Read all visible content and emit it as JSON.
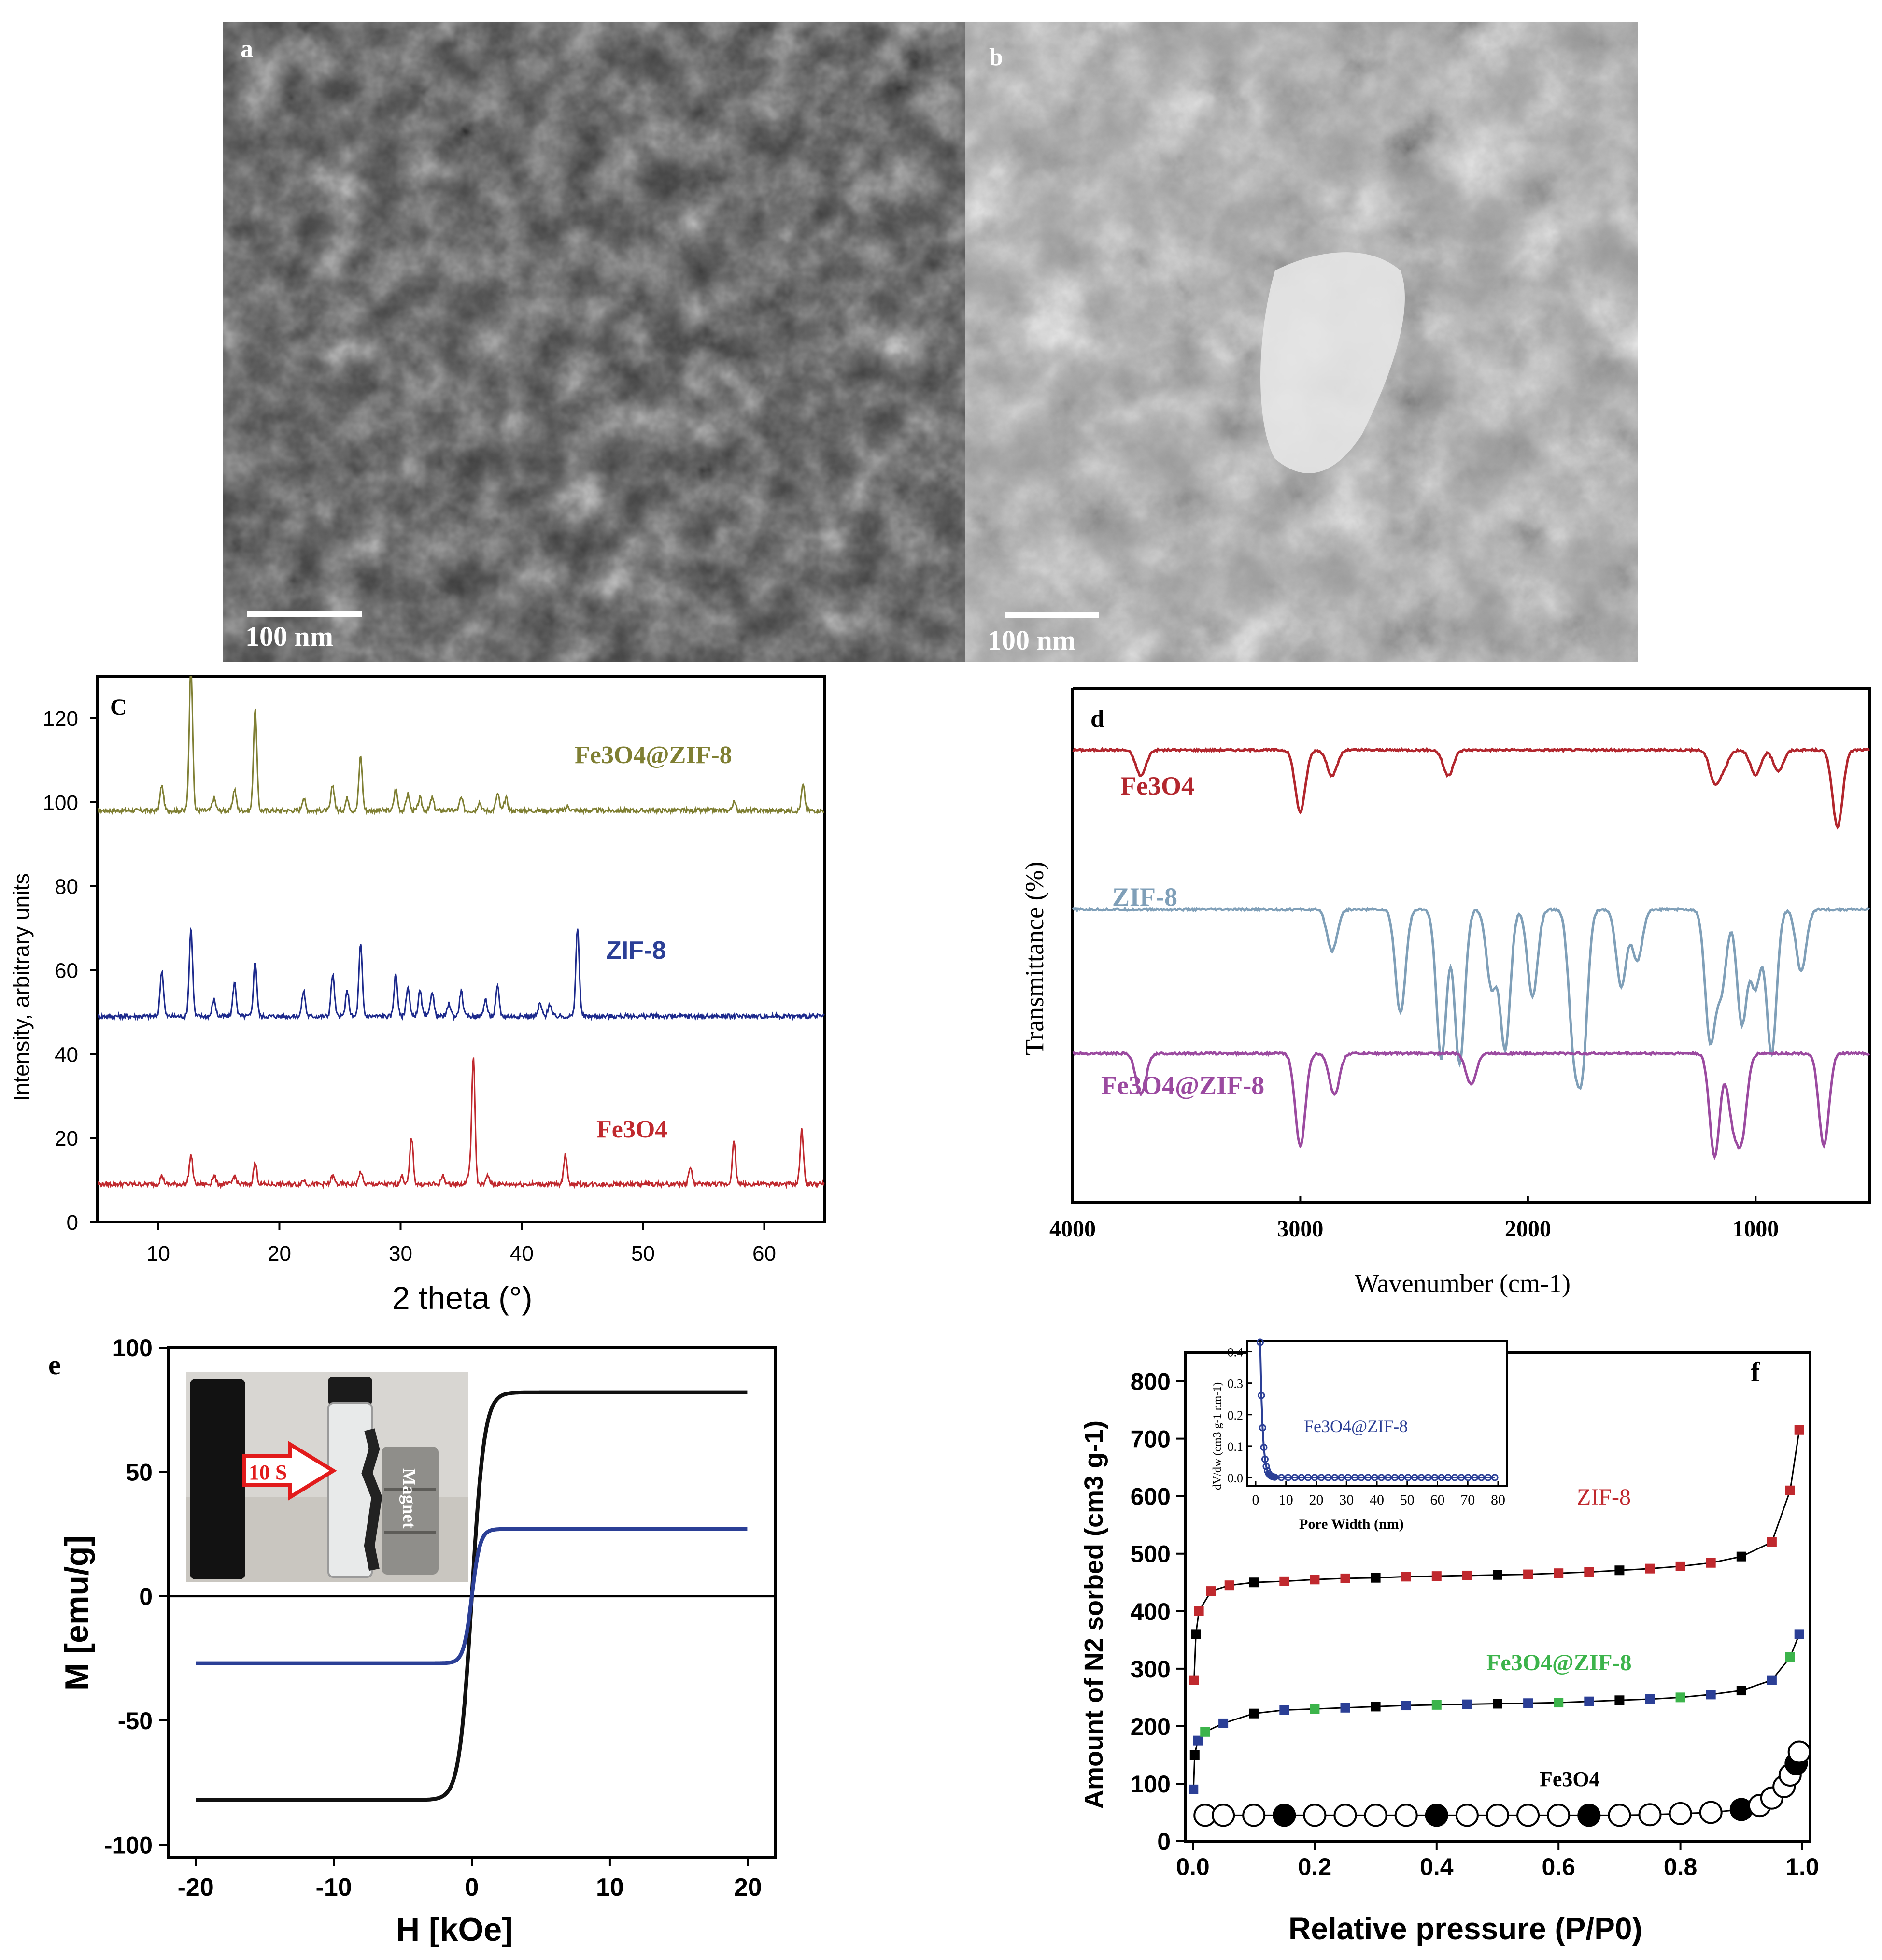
{
  "colors": {
    "red": "#c0292e",
    "blue": "#1d2a8c",
    "olive": "#7f7f33",
    "ftir_red": "#b2262d",
    "ftir_blue": "#7f9fb8",
    "ftir_purple": "#9b4aa0",
    "green": "#3cb44b",
    "navy": "#2b3f96",
    "black": "#111111"
  },
  "panel_a": {
    "label": "a",
    "scale": "100 nm"
  },
  "panel_b": {
    "label": "b",
    "scale": "100 nm"
  },
  "chart_data": [
    {
      "panel": "c",
      "type": "line",
      "xlabel": "2 theta (°)",
      "ylabel": "Intensity, arbitrary units",
      "xlim": [
        5,
        65
      ],
      "ylim": [
        0,
        130
      ],
      "xticks": [
        "10",
        "20",
        "30",
        "40",
        "50",
        "60"
      ],
      "yticks": [
        "0",
        "20",
        "40",
        "60",
        "80",
        "100",
        "120"
      ],
      "series": [
        {
          "name": "Fe3O4@ZIF-8",
          "color": "#7f7f33",
          "baseline": 98,
          "peaks": [
            [
              10.3,
              6
            ],
            [
              12.7,
              35
            ],
            [
              14.6,
              3
            ],
            [
              16.3,
              5
            ],
            [
              18.0,
              24
            ],
            [
              22.0,
              3
            ],
            [
              24.4,
              6
            ],
            [
              25.6,
              3
            ],
            [
              26.7,
              13
            ],
            [
              29.6,
              5
            ],
            [
              30.6,
              4
            ],
            [
              31.6,
              3
            ],
            [
              32.6,
              3
            ],
            [
              35.0,
              3
            ],
            [
              36.5,
              2
            ],
            [
              38.0,
              4
            ],
            [
              38.7,
              3
            ],
            [
              43.8,
              1
            ],
            [
              57.5,
              2
            ],
            [
              63.2,
              6
            ]
          ]
        },
        {
          "name": "ZIF-8",
          "color": "#1d2a8c",
          "baseline": 49,
          "peaks": [
            [
              10.3,
              11
            ],
            [
              12.7,
              21
            ],
            [
              14.6,
              4
            ],
            [
              16.3,
              8
            ],
            [
              18.0,
              13
            ],
            [
              22.0,
              6
            ],
            [
              24.4,
              10
            ],
            [
              25.6,
              6
            ],
            [
              26.7,
              17
            ],
            [
              29.6,
              10
            ],
            [
              30.6,
              7
            ],
            [
              31.6,
              6
            ],
            [
              32.6,
              6
            ],
            [
              34.0,
              3
            ],
            [
              35.0,
              6
            ],
            [
              37.0,
              4
            ],
            [
              38.0,
              7
            ],
            [
              41.5,
              3
            ],
            [
              42.3,
              3
            ],
            [
              44.6,
              21
            ]
          ]
        },
        {
          "name": "Fe3O4",
          "color": "#c0292e",
          "baseline": 9,
          "peaks": [
            [
              10.3,
              2
            ],
            [
              12.7,
              7
            ],
            [
              14.6,
              2
            ],
            [
              16.3,
              2
            ],
            [
              18.0,
              5
            ],
            [
              22.0,
              1
            ],
            [
              24.4,
              2
            ],
            [
              26.7,
              3
            ],
            [
              30.1,
              2
            ],
            [
              30.9,
              11
            ],
            [
              33.5,
              2
            ],
            [
              35.6,
              2
            ],
            [
              36.0,
              30
            ],
            [
              37.2,
              2
            ],
            [
              43.6,
              7
            ],
            [
              53.9,
              4
            ],
            [
              57.5,
              10
            ],
            [
              63.1,
              13
            ]
          ]
        }
      ]
    },
    {
      "panel": "d",
      "type": "line",
      "xlabel": "Wavenumber (cm-1)",
      "ylabel": "Transmittance (%)",
      "xlim": [
        4000,
        500
      ],
      "xticks": [
        "4000",
        "3000",
        "2000",
        "1000"
      ],
      "series": [
        {
          "name": "Fe3O4",
          "color": "#b2262d",
          "baseline": 0.88,
          "dips": [
            [
              3700,
              0.05
            ],
            [
              3000,
              0.12
            ],
            [
              2860,
              0.05
            ],
            [
              2350,
              0.05
            ],
            [
              1180,
              0.06
            ],
            [
              1140,
              0.03
            ],
            [
              1000,
              0.05
            ],
            [
              900,
              0.04
            ],
            [
              640,
              0.15
            ]
          ]
        },
        {
          "name": "ZIF-8",
          "color": "#7f9fb8",
          "baseline": 0.57,
          "dips": [
            [
              2860,
              0.08
            ],
            [
              2560,
              0.2
            ],
            [
              2380,
              0.29
            ],
            [
              2300,
              0.3
            ],
            [
              2160,
              0.15
            ],
            [
              2100,
              0.27
            ],
            [
              1980,
              0.17
            ],
            [
              1800,
              0.24
            ],
            [
              1760,
              0.28
            ],
            [
              1590,
              0.15
            ],
            [
              1520,
              0.1
            ],
            [
              1200,
              0.25
            ],
            [
              1150,
              0.15
            ],
            [
              1060,
              0.22
            ],
            [
              1000,
              0.15
            ],
            [
              930,
              0.28
            ],
            [
              800,
              0.12
            ]
          ]
        },
        {
          "name": "Fe3O4@ZIF-8",
          "color": "#9b4aa0",
          "baseline": 0.29,
          "dips": [
            [
              3700,
              0.08
            ],
            [
              3000,
              0.18
            ],
            [
              2850,
              0.08
            ],
            [
              2250,
              0.06
            ],
            [
              1180,
              0.2
            ],
            [
              1100,
              0.12
            ],
            [
              1060,
              0.15
            ],
            [
              700,
              0.18
            ]
          ]
        }
      ]
    },
    {
      "panel": "e",
      "type": "line",
      "xlabel": "H  [kOe]",
      "ylabel": "M [emu/g]",
      "xlim": [
        -22,
        22
      ],
      "ylim": [
        -105,
        100
      ],
      "xticks": [
        "-20",
        "-10",
        "0",
        "10",
        "20"
      ],
      "yticks": [
        "-100",
        "-50",
        "0",
        "50",
        "100"
      ],
      "series": [
        {
          "name": "",
          "color": "#111111",
          "Ms": 82,
          "width": 0.9
        },
        {
          "name": "",
          "color": "#2b3f96",
          "Ms": 27,
          "width": 0.6
        }
      ],
      "inset": {
        "arrow_label": "10 S",
        "magnet_label": "Magnet"
      }
    },
    {
      "panel": "f",
      "type": "scatter",
      "xlabel": "Relative pressure (P/P0)",
      "ylabel": "Amount of N2 sorbed (cm3 g-1)",
      "xlim": [
        0,
        1
      ],
      "ylim": [
        0,
        850
      ],
      "xticks": [
        "0.0",
        "0.2",
        "0.4",
        "0.6",
        "0.8",
        "1.0"
      ],
      "yticks": [
        "0",
        "100",
        "200",
        "300",
        "400",
        "500",
        "600",
        "700",
        "800"
      ],
      "series": [
        {
          "name": "ZIF-8",
          "color": "#c0292e",
          "points": [
            [
              0.002,
              280
            ],
            [
              0.005,
              360
            ],
            [
              0.01,
              400
            ],
            [
              0.03,
              435
            ],
            [
              0.06,
              445
            ],
            [
              0.1,
              450
            ],
            [
              0.15,
              452
            ],
            [
              0.2,
              455
            ],
            [
              0.25,
              457
            ],
            [
              0.3,
              458
            ],
            [
              0.35,
              460
            ],
            [
              0.4,
              461
            ],
            [
              0.45,
              462
            ],
            [
              0.5,
              463
            ],
            [
              0.55,
              464
            ],
            [
              0.6,
              466
            ],
            [
              0.65,
              468
            ],
            [
              0.7,
              471
            ],
            [
              0.75,
              474
            ],
            [
              0.8,
              478
            ],
            [
              0.85,
              484
            ],
            [
              0.9,
              495
            ],
            [
              0.95,
              520
            ],
            [
              0.98,
              610
            ],
            [
              0.995,
              715
            ]
          ]
        },
        {
          "name": "Fe3O4@ZIF-8",
          "color": "#3cb44b",
          "points": [
            [
              0.001,
              90
            ],
            [
              0.003,
              150
            ],
            [
              0.008,
              175
            ],
            [
              0.02,
              190
            ],
            [
              0.05,
              205
            ],
            [
              0.1,
              222
            ],
            [
              0.15,
              228
            ],
            [
              0.2,
              230
            ],
            [
              0.25,
              232
            ],
            [
              0.3,
              234
            ],
            [
              0.35,
              236
            ],
            [
              0.4,
              237
            ],
            [
              0.45,
              238
            ],
            [
              0.5,
              239
            ],
            [
              0.55,
              240
            ],
            [
              0.6,
              241
            ],
            [
              0.65,
              243
            ],
            [
              0.7,
              245
            ],
            [
              0.75,
              247
            ],
            [
              0.8,
              250
            ],
            [
              0.85,
              255
            ],
            [
              0.9,
              262
            ],
            [
              0.95,
              280
            ],
            [
              0.98,
              320
            ],
            [
              0.995,
              360
            ]
          ]
        },
        {
          "name": "Fe3O4",
          "color": "#111111",
          "points": [
            [
              0.02,
              45
            ],
            [
              0.05,
              45
            ],
            [
              0.1,
              45
            ],
            [
              0.15,
              45
            ],
            [
              0.2,
              45
            ],
            [
              0.25,
              45
            ],
            [
              0.3,
              45
            ],
            [
              0.35,
              45
            ],
            [
              0.4,
              45
            ],
            [
              0.45,
              45
            ],
            [
              0.5,
              45
            ],
            [
              0.55,
              45
            ],
            [
              0.6,
              45
            ],
            [
              0.65,
              45
            ],
            [
              0.7,
              45
            ],
            [
              0.75,
              46
            ],
            [
              0.8,
              48
            ],
            [
              0.85,
              50
            ],
            [
              0.9,
              55
            ],
            [
              0.93,
              62
            ],
            [
              0.95,
              75
            ],
            [
              0.97,
              95
            ],
            [
              0.98,
              115
            ],
            [
              0.99,
              135
            ],
            [
              0.995,
              155
            ]
          ]
        }
      ],
      "inset": {
        "label": "Fe3O4@ZIF-8",
        "xlabel": "Pore Width (nm)",
        "ylabel": "dV/dw (cm3 g-1 nm-1)",
        "xticks": [
          "0",
          "10",
          "20",
          "30",
          "40",
          "50",
          "60",
          "70",
          "80"
        ],
        "yticks": [
          "0.0",
          "0.1",
          "0.2",
          "0.3",
          "0.4"
        ]
      }
    }
  ],
  "labels": {
    "c": "C",
    "d": "d",
    "e": "e",
    "f": "f"
  },
  "legends": {
    "c": [
      "Fe3O4@ZIF-8",
      "ZIF-8",
      "Fe3O4"
    ],
    "d": [
      "Fe3O4",
      "ZIF-8",
      "Fe3O4@ZIF-8"
    ],
    "f": [
      "ZIF-8",
      "Fe3O4@ZIF-8",
      "Fe3O4"
    ]
  }
}
